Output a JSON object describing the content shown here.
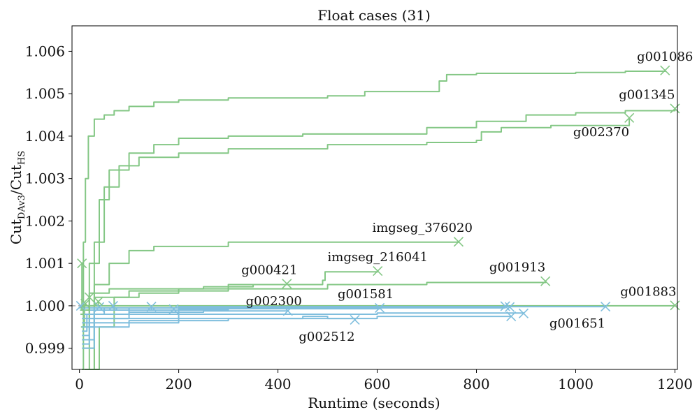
{
  "chart_data": {
    "type": "line",
    "title": "Float cases (31)",
    "xlabel": "Runtime (seconds)",
    "ylabel": {
      "base1": "Cut",
      "sub1": "DAv3",
      "base2": "/Cut",
      "sub2": "HS"
    },
    "xlim": [
      -15,
      1205
    ],
    "ylim": [
      0.9985,
      1.0066
    ],
    "xticks": [
      0,
      200,
      400,
      600,
      800,
      1000,
      1200
    ],
    "yticks": [
      0.999,
      1.0,
      1.001,
      1.002,
      1.003,
      1.004,
      1.005,
      1.006
    ],
    "ytick_labels": [
      "0.999",
      "1.000",
      "1.001",
      "1.002",
      "1.003",
      "1.004",
      "1.005",
      "1.006"
    ],
    "reference_line": 1.0,
    "colors": {
      "improved": "#84c785",
      "worse": "#7fbedd",
      "reference": "#999999"
    },
    "series": [
      {
        "name": "g001086",
        "group": "improved",
        "points": [
          [
            5,
            0.9985
          ],
          [
            8,
            1.0015
          ],
          [
            12,
            1.003
          ],
          [
            18,
            1.004
          ],
          [
            30,
            1.0044
          ],
          [
            50,
            1.0045
          ],
          [
            70,
            1.0046
          ],
          [
            100,
            1.0047
          ],
          [
            150,
            1.0048
          ],
          [
            200,
            1.00485
          ],
          [
            300,
            1.0049
          ],
          [
            400,
            1.0049
          ],
          [
            500,
            1.00495
          ],
          [
            570,
            1.00495
          ],
          [
            575,
            1.00505
          ],
          [
            720,
            1.00505
          ],
          [
            725,
            1.0053
          ],
          [
            740,
            1.00545
          ],
          [
            800,
            1.00548
          ],
          [
            1000,
            1.0055
          ],
          [
            1100,
            1.00553
          ],
          [
            1180,
            1.00555
          ]
        ]
      },
      {
        "name": "g001345",
        "group": "improved",
        "points": [
          [
            10,
            0.9985
          ],
          [
            20,
            1.001
          ],
          [
            40,
            1.0025
          ],
          [
            60,
            1.0032
          ],
          [
            100,
            1.0036
          ],
          [
            150,
            1.0038
          ],
          [
            200,
            1.00395
          ],
          [
            300,
            1.004
          ],
          [
            450,
            1.00405
          ],
          [
            700,
            1.0042
          ],
          [
            800,
            1.00435
          ],
          [
            900,
            1.0045
          ],
          [
            1000,
            1.00455
          ],
          [
            1100,
            1.0046
          ],
          [
            1200,
            1.00465
          ]
        ]
      },
      {
        "name": "g002370",
        "group": "improved",
        "points": [
          [
            15,
            0.9985
          ],
          [
            30,
            1.0015
          ],
          [
            50,
            1.0028
          ],
          [
            80,
            1.0033
          ],
          [
            120,
            1.0035
          ],
          [
            200,
            1.0036
          ],
          [
            300,
            1.0037
          ],
          [
            500,
            1.0038
          ],
          [
            700,
            1.00385
          ],
          [
            800,
            1.0039
          ],
          [
            810,
            1.0041
          ],
          [
            850,
            1.0042
          ],
          [
            950,
            1.00425
          ],
          [
            1108,
            1.00443
          ]
        ]
      },
      {
        "name": "imgseg_376020",
        "group": "improved",
        "points": [
          [
            18,
            0.9985
          ],
          [
            30,
            1.0005
          ],
          [
            60,
            1.001
          ],
          [
            100,
            1.0013
          ],
          [
            150,
            1.0014
          ],
          [
            200,
            1.0014
          ],
          [
            300,
            1.0015
          ],
          [
            500,
            1.0015
          ],
          [
            764,
            1.00151
          ]
        ]
      },
      {
        "name": "imgseg_216041",
        "group": "improved",
        "points": [
          [
            25,
            0.9985
          ],
          [
            40,
            0.9995
          ],
          [
            70,
            1.0002
          ],
          [
            120,
            1.0003
          ],
          [
            200,
            1.0004
          ],
          [
            300,
            1.0005
          ],
          [
            490,
            1.0006
          ],
          [
            495,
            1.0008
          ],
          [
            601,
            1.00082
          ]
        ]
      },
      {
        "name": "g000421",
        "group": "improved",
        "points": [
          [
            5,
            0.9995
          ],
          [
            20,
            1.0003
          ],
          [
            60,
            1.0004
          ],
          [
            150,
            1.0004
          ],
          [
            250,
            1.00045
          ],
          [
            350,
            1.0005
          ],
          [
            418,
            1.00052
          ]
        ]
      },
      {
        "name": "g001913",
        "group": "improved",
        "points": [
          [
            8,
            0.999
          ],
          [
            30,
            1.0002
          ],
          [
            100,
            1.00035
          ],
          [
            300,
            1.0004
          ],
          [
            500,
            1.0005
          ],
          [
            700,
            1.00055
          ],
          [
            939,
            1.00058
          ]
        ]
      },
      {
        "name": "g001883",
        "group": "improved",
        "points": [
          [
            3,
            0.9995
          ],
          [
            10,
            1.0
          ],
          [
            500,
            1.0
          ],
          [
            1200,
            1.00001
          ]
        ]
      },
      {
        "name": "g001651",
        "group": "worse",
        "points": [
          [
            5,
            0.9994
          ],
          [
            15,
            0.9998
          ],
          [
            100,
            0.99995
          ],
          [
            500,
            0.99998
          ],
          [
            1060,
            0.99998
          ]
        ]
      },
      {
        "name": "g002512",
        "group": "worse",
        "points": [
          [
            5,
            0.9991
          ],
          [
            20,
            0.9995
          ],
          [
            100,
            0.99965
          ],
          [
            300,
            0.9997
          ],
          [
            450,
            0.99975
          ],
          [
            500,
            0.9997
          ],
          [
            555,
            0.99967
          ]
        ]
      },
      {
        "name": "g002300",
        "group": "worse",
        "points": [
          [
            5,
            0.9993
          ],
          [
            20,
            0.9997
          ],
          [
            100,
            0.99985
          ],
          [
            250,
            0.99988
          ],
          [
            420,
            0.99988
          ]
        ]
      },
      {
        "name": "g001581",
        "group": "worse",
        "points": [
          [
            5,
            0.9995
          ],
          [
            30,
            0.9998
          ],
          [
            200,
            0.99993
          ],
          [
            605,
            0.99995
          ]
        ]
      },
      {
        "name": "",
        "group": "worse",
        "points": [
          [
            5,
            0.999
          ],
          [
            30,
            0.9996
          ],
          [
            200,
            0.9997
          ],
          [
            600,
            0.99975
          ],
          [
            870,
            0.99975
          ]
        ]
      },
      {
        "name": "",
        "group": "worse",
        "points": [
          [
            5,
            0.9992
          ],
          [
            30,
            0.9997
          ],
          [
            200,
            0.9998
          ],
          [
            600,
            0.99983
          ],
          [
            895,
            0.99982
          ]
        ]
      },
      {
        "name": "",
        "group": "worse",
        "points": [
          [
            5,
            0.9996
          ],
          [
            30,
            0.9999
          ],
          [
            300,
            0.99995
          ],
          [
            858,
            0.99999
          ]
        ]
      },
      {
        "name": "",
        "group": "worse",
        "points": [
          [
            5,
            0.9997
          ],
          [
            30,
            0.99995
          ],
          [
            200,
            0.99998
          ],
          [
            867,
            0.99997
          ]
        ]
      },
      {
        "name": "",
        "group": "worse",
        "points": [
          [
            2,
            0.9999
          ],
          [
            50,
            0.99995
          ],
          [
            190,
            0.99992
          ]
        ]
      },
      {
        "name": "",
        "group": "worse",
        "points": [
          [
            2,
            0.9998
          ],
          [
            50,
            0.9999
          ],
          [
            145,
            0.99998
          ]
        ]
      },
      {
        "name": "",
        "group": "worse",
        "points": [
          [
            2,
            0.9999
          ],
          [
            20,
            0.99995
          ],
          [
            68,
            1.0
          ]
        ]
      },
      {
        "name": "",
        "group": "worse",
        "points": [
          [
            1,
            0.9999
          ],
          [
            10,
            0.99995
          ],
          [
            40,
            0.99997
          ]
        ]
      },
      {
        "name": "",
        "group": "worse",
        "points": [
          [
            0,
            0.99995
          ],
          [
            3,
            1.0
          ]
        ]
      },
      {
        "name": "",
        "group": "improved",
        "points": [
          [
            2,
            1.0
          ],
          [
            5,
            1.001
          ]
        ]
      },
      {
        "name": "",
        "group": "improved",
        "points": [
          [
            2,
            0.9999
          ],
          [
            10,
            1.0
          ],
          [
            38,
            1.0001
          ]
        ]
      },
      {
        "name": "",
        "group": "improved",
        "points": [
          [
            2,
            0.9998
          ],
          [
            8,
            0.9999
          ],
          [
            20,
            1.0002
          ]
        ]
      },
      {
        "name": "",
        "group": "improved",
        "points": [
          [
            2,
            0.9999
          ],
          [
            5,
            1.0
          ],
          [
            12,
            1.00005
          ]
        ]
      }
    ],
    "annotations": [
      {
        "text": "g001086",
        "x": 1180,
        "y": 1.00555,
        "anchor": "middle",
        "dx": 0,
        "dy": -14
      },
      {
        "text": "g001345",
        "x": 1200,
        "y": 1.00465,
        "anchor": "end",
        "dx": 0,
        "dy": -14
      },
      {
        "text": "g002370",
        "x": 1108,
        "y": 1.00443,
        "anchor": "end",
        "dx": 0,
        "dy": 26
      },
      {
        "text": "imgseg_376020",
        "x": 764,
        "y": 1.00151,
        "anchor": "end",
        "dx": 20,
        "dy": -14
      },
      {
        "text": "imgseg_216041",
        "x": 601,
        "y": 1.00082,
        "anchor": "middle",
        "dx": 0,
        "dy": -14
      },
      {
        "text": "g000421",
        "x": 418,
        "y": 1.00052,
        "anchor": "middle",
        "dx": -25,
        "dy": -14
      },
      {
        "text": "g001913",
        "x": 939,
        "y": 1.00058,
        "anchor": "end",
        "dx": 0,
        "dy": -14
      },
      {
        "text": "g001883",
        "x": 1200,
        "y": 1.00001,
        "anchor": "end",
        "dx": 2,
        "dy": -14
      },
      {
        "text": "g001651",
        "x": 1060,
        "y": 0.99998,
        "anchor": "end",
        "dx": 0,
        "dy": 30
      },
      {
        "text": "g002512",
        "x": 555,
        "y": 0.99967,
        "anchor": "end",
        "dx": 0,
        "dy": 30
      },
      {
        "text": "g002300",
        "x": 420,
        "y": 0.99988,
        "anchor": "middle",
        "dx": -20,
        "dy": -8
      },
      {
        "text": "g001581",
        "x": 605,
        "y": 0.99995,
        "anchor": "middle",
        "dx": -20,
        "dy": -14
      }
    ]
  }
}
